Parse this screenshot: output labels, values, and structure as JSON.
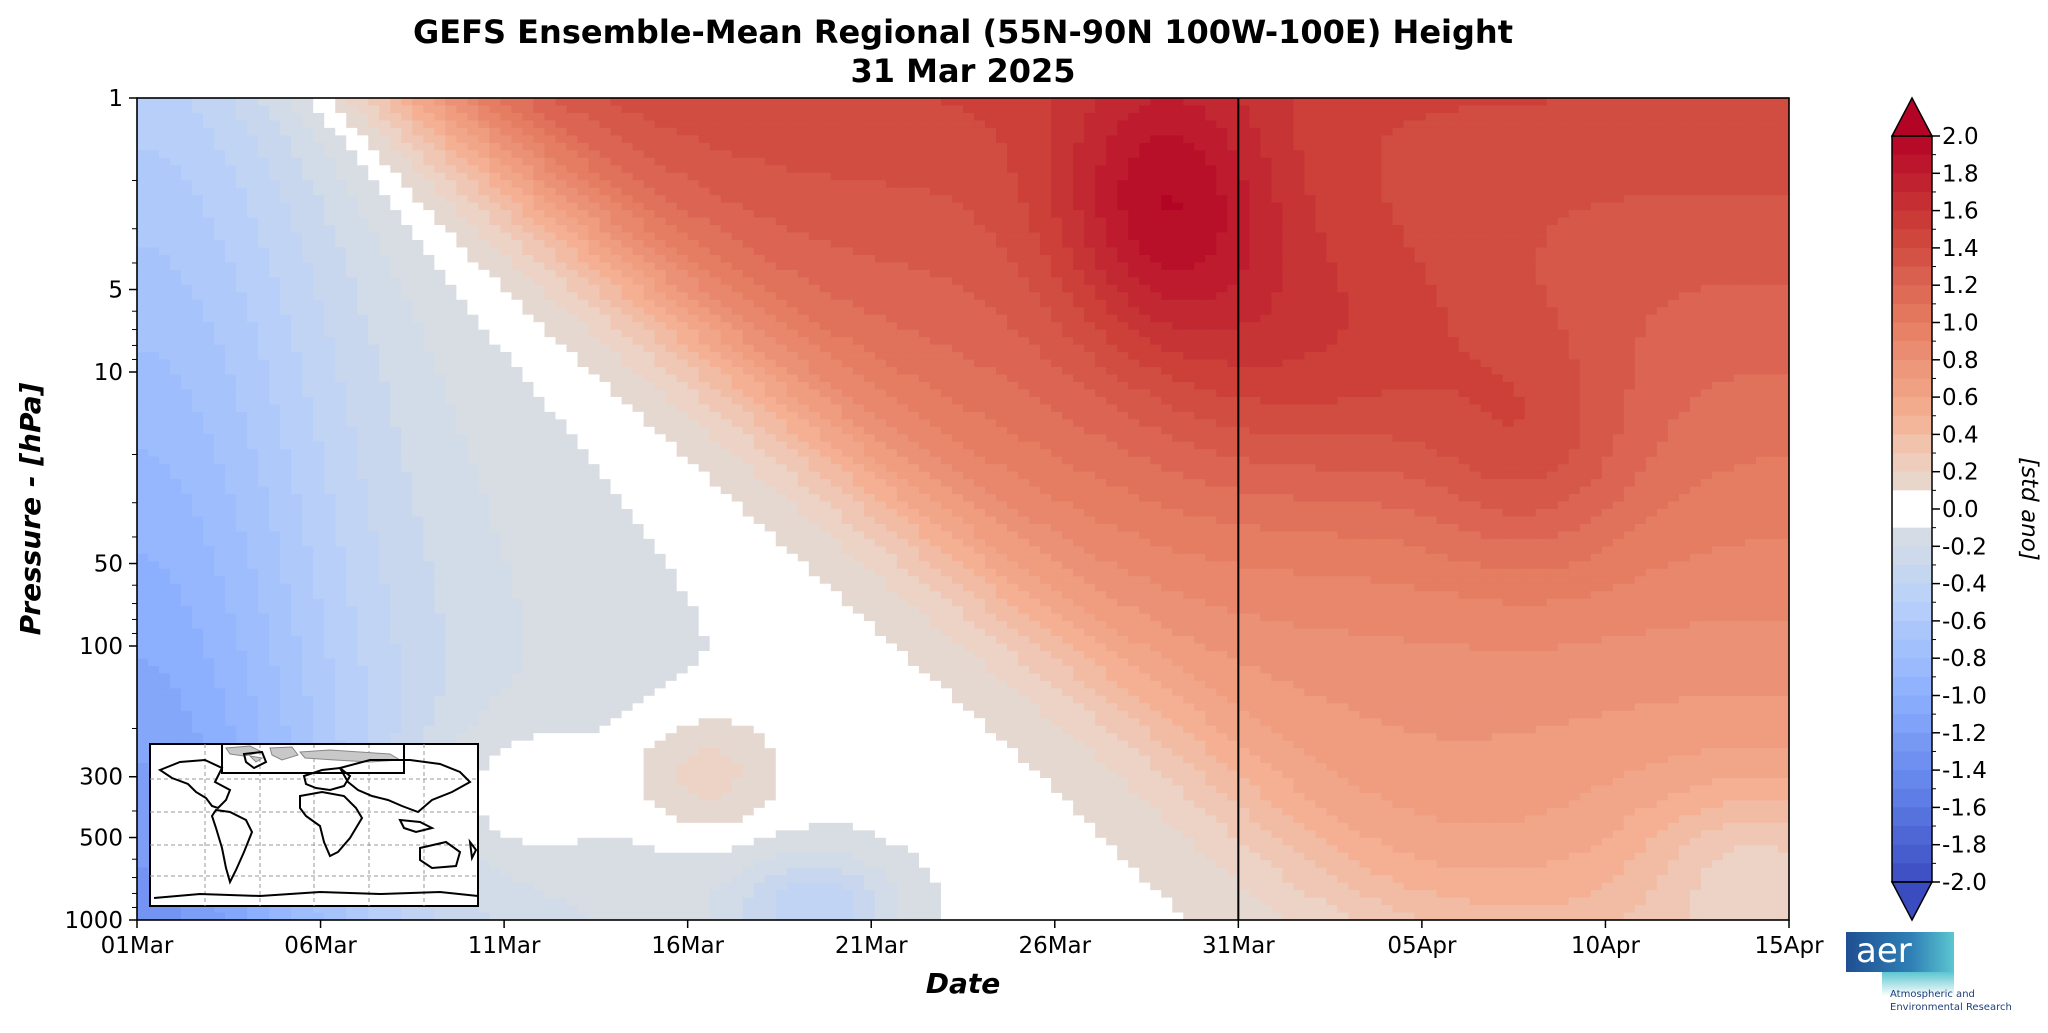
{
  "chart_data": {
    "type": "heatmap",
    "title": "GEFS Ensemble-Mean Regional (55N-90N 100W-100E) Height",
    "subtitle": "31 Mar 2025",
    "xlabel": "Date",
    "ylabel": "Pressure - [hPa]",
    "x_ticks": [
      "01Mar",
      "06Mar",
      "11Mar",
      "16Mar",
      "21Mar",
      "26Mar",
      "31Mar",
      "05Apr",
      "10Apr",
      "15Apr"
    ],
    "y_ticks": [
      "1",
      "5",
      "10",
      "50",
      "100",
      "300",
      "500",
      "1000"
    ],
    "y_tick_values": [
      1,
      5,
      10,
      50,
      100,
      300,
      500,
      1000
    ],
    "y_scale": "log",
    "x_range_days": [
      0,
      45
    ],
    "y_range_hPa": [
      1,
      1000
    ],
    "current_date_line": "31Mar",
    "current_date_day": 30,
    "colorbar": {
      "label": "[std ano]",
      "min": -2.0,
      "max": 2.0,
      "tick_labels": [
        "2.0",
        "1.8",
        "1.6",
        "1.4",
        "1.2",
        "1.0",
        "0.8",
        "0.6",
        "0.4",
        "0.2",
        "0.0",
        "-0.2",
        "-0.4",
        "-0.6",
        "-0.8",
        "-1.0",
        "-1.2",
        "-1.4",
        "-1.6",
        "-1.8",
        "-2.0"
      ],
      "levels": 40,
      "extend": "both"
    },
    "field_summary": [
      {
        "region": "early March, all levels",
        "anomaly": -0.7
      },
      {
        "region": "27-28 Mar near 3 hPa",
        "anomaly": 2.0
      },
      {
        "region": "31 Mar - 04 Apr, 5-20 hPa",
        "anomaly": 1.7
      },
      {
        "region": "07-08 Apr, 10-50 hPa",
        "anomaly": 1.75
      },
      {
        "region": "lower troposphere late March",
        "anomaly": 0.2
      }
    ],
    "inset": "world map with highlighted region 55N-90N 100W-100E"
  },
  "logo": {
    "word": "aer",
    "line1": "Atmospheric and",
    "line2": "Environmental Research"
  }
}
